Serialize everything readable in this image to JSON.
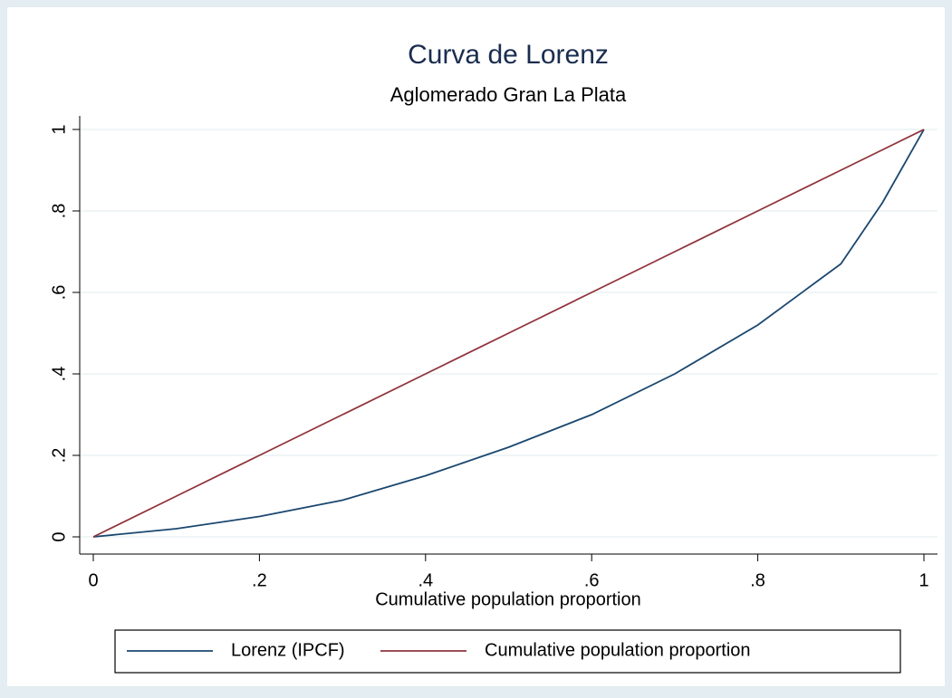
{
  "chart_data": {
    "type": "line",
    "title": "Curva de Lorenz",
    "subtitle": "Aglomerado Gran La Plata",
    "x_label": "Cumulative population proportion",
    "x": [
      0,
      0.1,
      0.2,
      0.3,
      0.4,
      0.5,
      0.6,
      0.7,
      0.8,
      0.9,
      0.95,
      1
    ],
    "series": [
      {
        "name": "Lorenz (IPCF)",
        "color": "#1a476f",
        "values": [
          0,
          0.02,
          0.05,
          0.09,
          0.15,
          0.22,
          0.3,
          0.4,
          0.52,
          0.67,
          0.82,
          1
        ]
      },
      {
        "name": "Cumulative population proportion",
        "color": "#90353b",
        "values": [
          0,
          0.1,
          0.2,
          0.3,
          0.4,
          0.5,
          0.6,
          0.7,
          0.8,
          0.9,
          0.95,
          1
        ]
      }
    ],
    "xlim": [
      0,
      1
    ],
    "ylim": [
      0,
      1
    ],
    "xticks": [
      0,
      {
        "value": 0.2,
        "label": ".2"
      },
      {
        "value": 0.4,
        "label": ".4"
      },
      {
        "value": 0.6,
        "label": ".6"
      },
      {
        "value": 0.8,
        "label": ".8"
      },
      1
    ],
    "yticks": [
      0,
      {
        "value": 0.2,
        "label": ".2"
      },
      {
        "value": 0.4,
        "label": ".4"
      },
      {
        "value": 0.6,
        "label": ".6"
      },
      {
        "value": 0.8,
        "label": ".8"
      },
      1
    ],
    "grid": true
  }
}
